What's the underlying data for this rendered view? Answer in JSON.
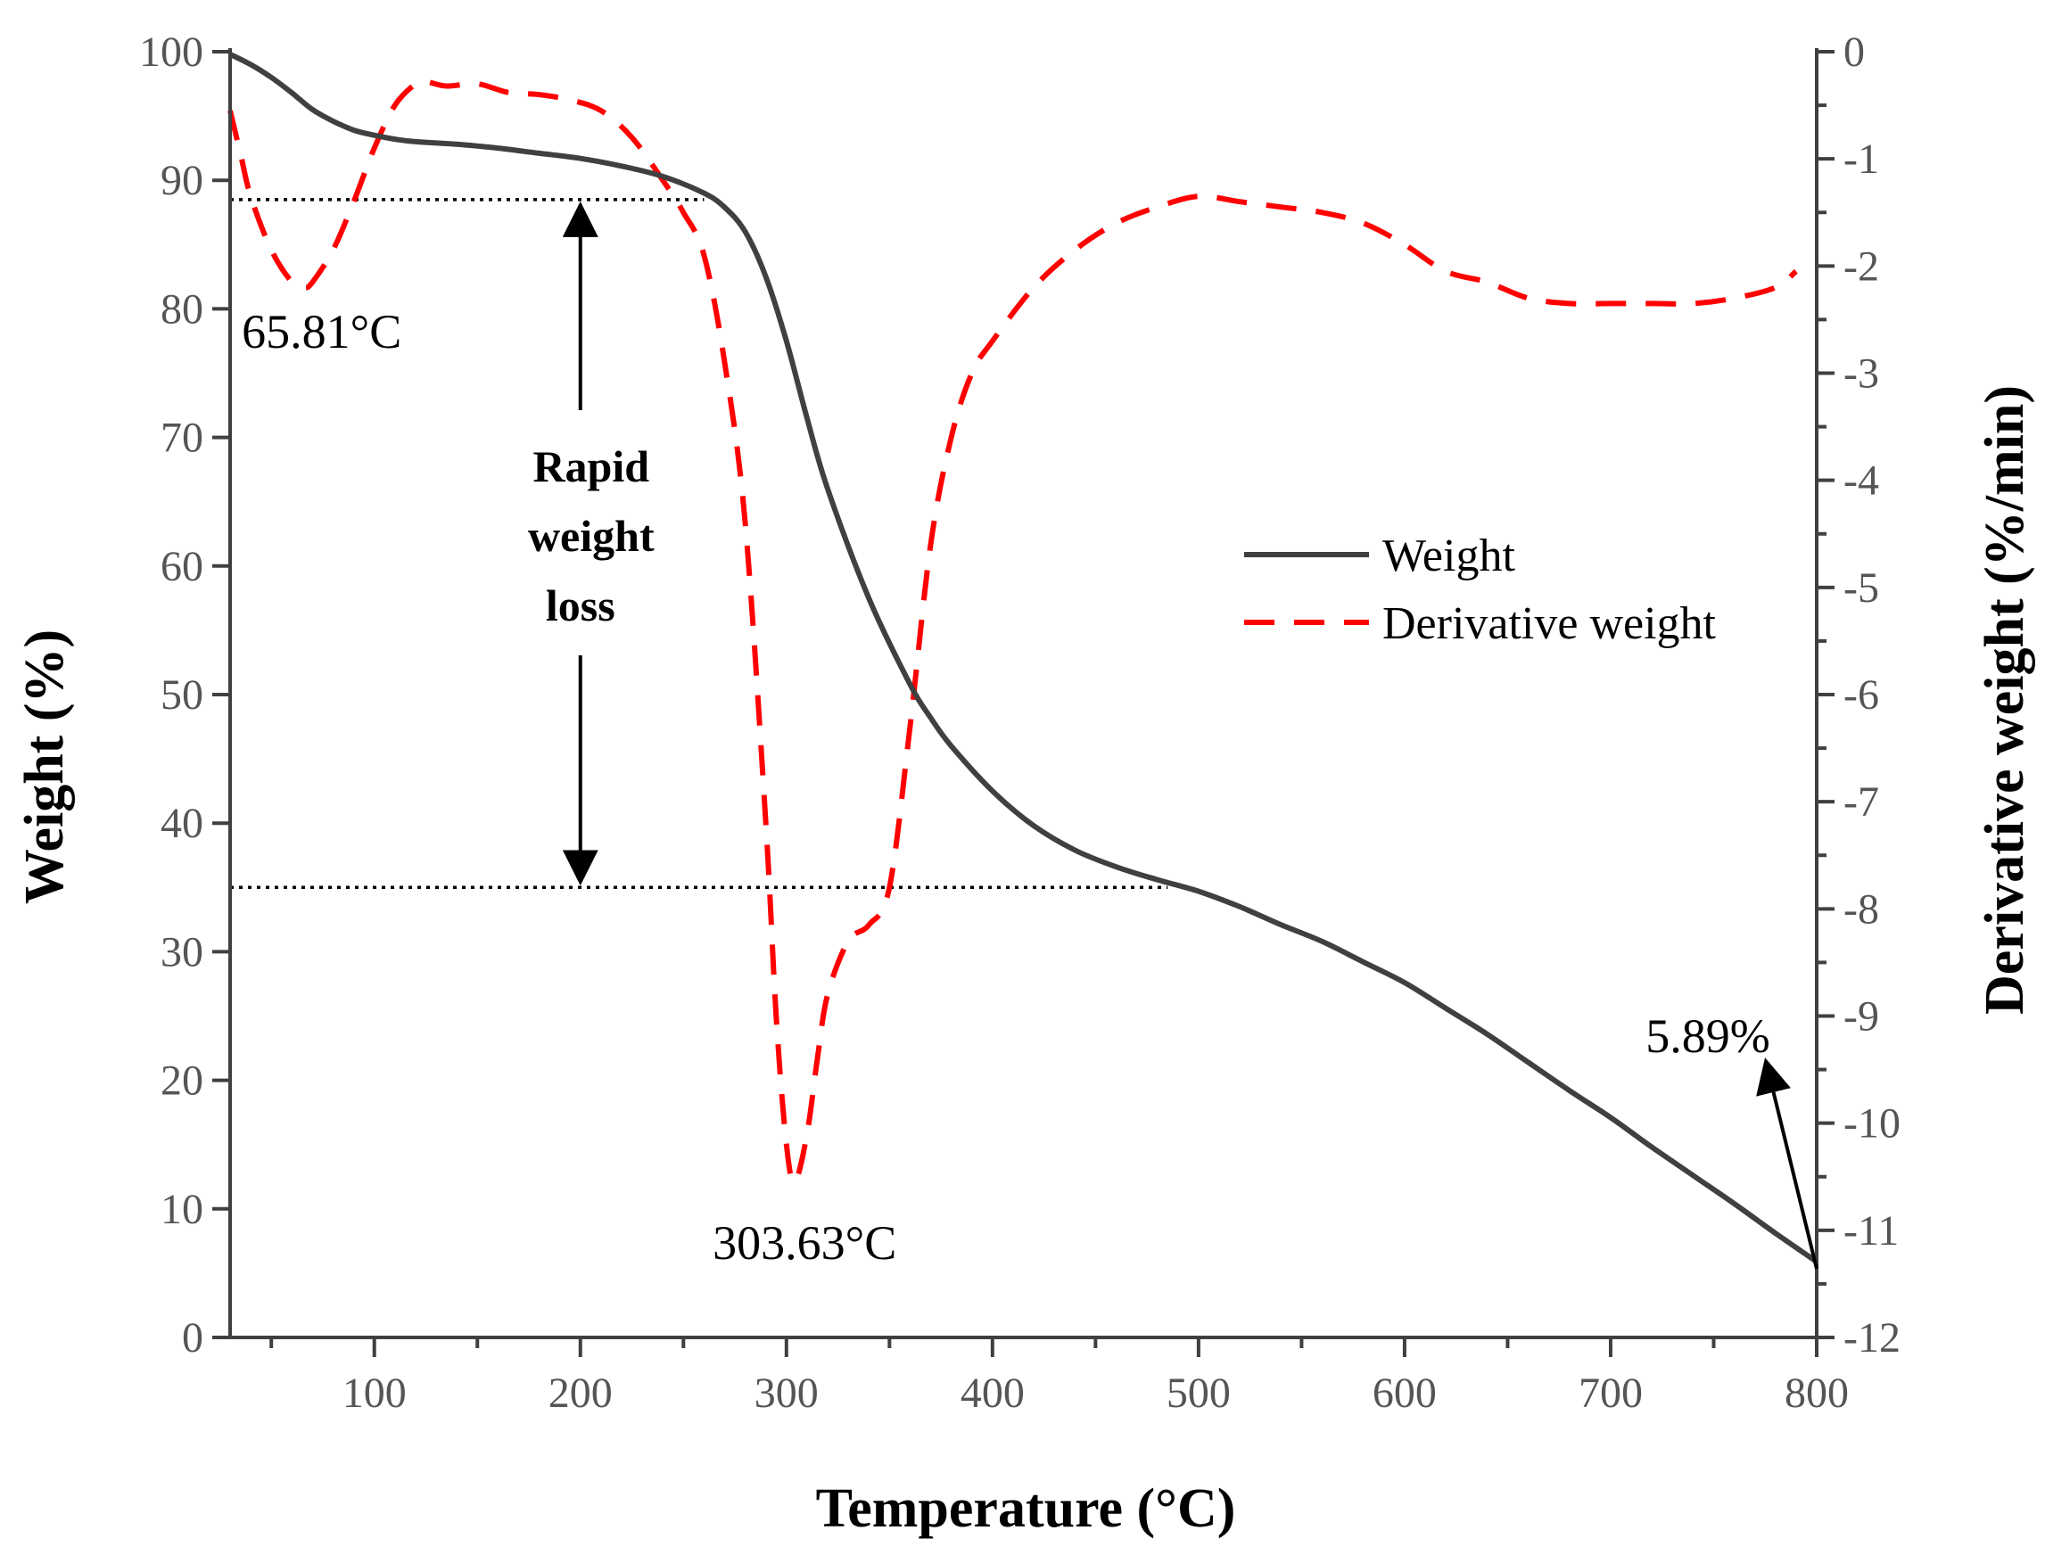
{
  "chart_data": {
    "type": "line",
    "title": "",
    "xlabel": "Temperature (°C)",
    "ylabel": "Weight (%)",
    "y2label": "Derivative weight (%/min)",
    "xlim": [
      30,
      800
    ],
    "ylim": [
      0,
      100
    ],
    "y2lim": [
      -12,
      0
    ],
    "x_ticks": [
      100,
      200,
      300,
      400,
      500,
      600,
      700,
      800
    ],
    "y_ticks": [
      0,
      10,
      20,
      30,
      40,
      50,
      60,
      70,
      80,
      90,
      100
    ],
    "y2_ticks": [
      0,
      -1,
      -2,
      -3,
      -4,
      -5,
      -6,
      -7,
      -8,
      -9,
      -10,
      -11,
      -12
    ],
    "colors": {
      "weight": "#404040",
      "derivative": "#ff0000",
      "axis": "#404040"
    },
    "series": [
      {
        "name": "Weight",
        "axis": "left",
        "style": "solid",
        "x": [
          30,
          40,
          50,
          60,
          70,
          80,
          90,
          100,
          110,
          120,
          140,
          160,
          180,
          200,
          220,
          240,
          260,
          270,
          280,
          290,
          300,
          310,
          320,
          340,
          360,
          370,
          380,
          400,
          420,
          440,
          460,
          480,
          500,
          520,
          540,
          560,
          580,
          600,
          620,
          640,
          660,
          680,
          700,
          720,
          740,
          760,
          780,
          800
        ],
        "y": [
          99.8,
          99.0,
          98.0,
          96.8,
          95.5,
          94.6,
          93.9,
          93.5,
          93.2,
          93.0,
          92.8,
          92.5,
          92.1,
          91.7,
          91.1,
          90.3,
          89.0,
          87.9,
          86.0,
          82.5,
          77.5,
          71.5,
          66.0,
          57.5,
          50.8,
          48.2,
          46.0,
          42.5,
          39.8,
          37.9,
          36.6,
          35.6,
          34.7,
          33.5,
          32.1,
          30.8,
          29.2,
          27.6,
          25.6,
          23.6,
          21.4,
          19.2,
          17.1,
          14.8,
          12.6,
          10.4,
          8.1,
          5.89
        ]
      },
      {
        "name": "Derivative weight",
        "axis": "right",
        "style": "dashed",
        "x": [
          30,
          35,
          40,
          50,
          60,
          66,
          70,
          80,
          90,
          100,
          110,
          120,
          125,
          135,
          150,
          165,
          180,
          195,
          210,
          225,
          240,
          250,
          260,
          270,
          280,
          290,
          295,
          300,
          304,
          310,
          315,
          320,
          330,
          340,
          350,
          360,
          370,
          380,
          390,
          400,
          420,
          440,
          460,
          480,
          500,
          520,
          540,
          560,
          580,
          600,
          620,
          640,
          660,
          680,
          700,
          720,
          740,
          760,
          780,
          790
        ],
        "y": [
          -0.55,
          -0.95,
          -1.35,
          -1.85,
          -2.15,
          -2.2,
          -2.15,
          -1.85,
          -1.4,
          -0.9,
          -0.5,
          -0.3,
          -0.28,
          -0.32,
          -0.3,
          -0.38,
          -0.4,
          -0.45,
          -0.55,
          -0.8,
          -1.2,
          -1.5,
          -1.9,
          -2.9,
          -4.4,
          -7.2,
          -9.0,
          -10.2,
          -10.55,
          -10.1,
          -9.4,
          -8.8,
          -8.3,
          -8.15,
          -7.8,
          -6.3,
          -4.6,
          -3.6,
          -3.0,
          -2.7,
          -2.2,
          -1.85,
          -1.6,
          -1.45,
          -1.35,
          -1.4,
          -1.45,
          -1.5,
          -1.6,
          -1.8,
          -2.05,
          -2.15,
          -2.3,
          -2.35,
          -2.35,
          -2.35,
          -2.35,
          -2.3,
          -2.2,
          -2.05
        ]
      }
    ],
    "reference_lines": [
      {
        "y": 88.5,
        "x_range": [
          30,
          260
        ],
        "style": "dotted"
      },
      {
        "y": 35.0,
        "x_range": [
          30,
          485
        ],
        "style": "dotted"
      }
    ],
    "annotations": {
      "peak1": {
        "text": "65.81°C",
        "x": 65.81
      },
      "peak2": {
        "text": "303.63°C",
        "x": 303.63
      },
      "final_weight": {
        "text": "5.89%",
        "x": 800,
        "y": 5.89
      },
      "rapid_loss": {
        "lines": [
          "Rapid",
          "weight",
          "loss"
        ],
        "x": 200,
        "y_top": 88.5,
        "y_bottom": 35.0
      }
    },
    "legend": {
      "position": "center-right",
      "entries": [
        "Weight",
        "Derivative weight"
      ]
    }
  }
}
